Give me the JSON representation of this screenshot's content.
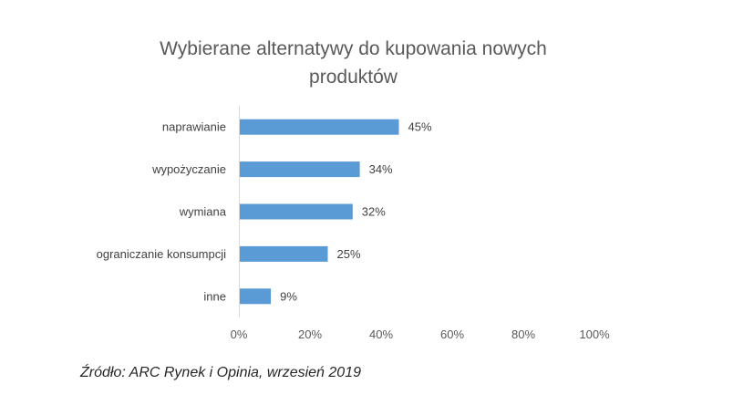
{
  "chart_data": {
    "type": "bar",
    "orientation": "horizontal",
    "title": "Wybierane alternatywy do kupowania nowych produktów",
    "title_lines": [
      "Wybierane alternatywy do kupowania nowych",
      "produktów"
    ],
    "categories": [
      "naprawianie",
      "wypożyczanie",
      "wymiana",
      "ograniczanie konsumpcji",
      "inne"
    ],
    "values": [
      45,
      34,
      32,
      25,
      9
    ],
    "value_labels": [
      "45%",
      "34%",
      "32%",
      "25%",
      "9%"
    ],
    "xlim": [
      0,
      100
    ],
    "x_ticks": [
      0,
      20,
      40,
      60,
      80,
      100
    ],
    "x_tick_labels": [
      "0%",
      "20%",
      "40%",
      "60%",
      "80%",
      "100%"
    ],
    "xlabel": "",
    "ylabel": "",
    "grid": false,
    "bar_color": "#5b9bd5"
  },
  "source": "Źródło: ARC Rynek i Opinia, wrzesień 2019"
}
